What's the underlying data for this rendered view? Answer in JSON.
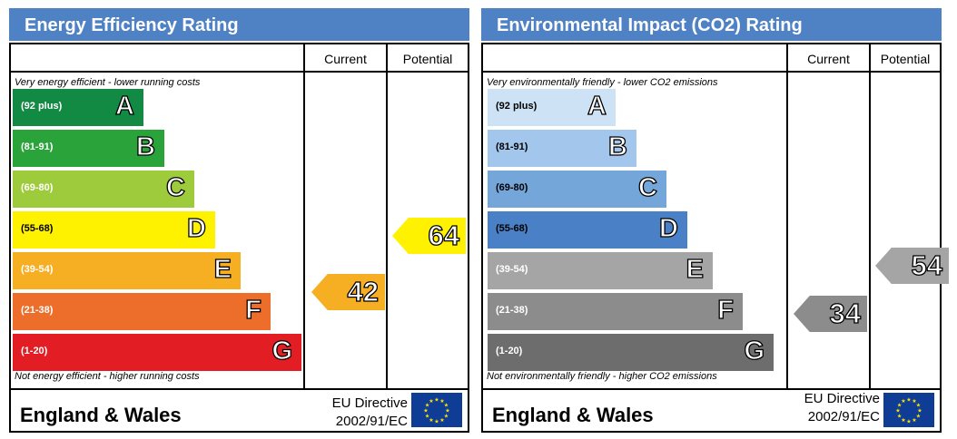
{
  "chart_data": [
    {
      "type": "table",
      "title": "Energy Efficiency Rating",
      "columns": [
        "Current",
        "Potential"
      ],
      "top_note": "Very energy efficient - lower running costs",
      "bottom_note": "Not energy efficient - higher running costs",
      "bands": [
        {
          "letter": "A",
          "range": "(92 plus)",
          "color": "#138a43"
        },
        {
          "letter": "B",
          "range": "(81-91)",
          "color": "#2aa33b"
        },
        {
          "letter": "C",
          "range": "(69-80)",
          "color": "#9dcb3c"
        },
        {
          "letter": "D",
          "range": "(55-68)",
          "color": "#fff200"
        },
        {
          "letter": "E",
          "range": "(39-54)",
          "color": "#f6ae23"
        },
        {
          "letter": "F",
          "range": "(21-38)",
          "color": "#ec6e2a"
        },
        {
          "letter": "G",
          "range": "(1-20)",
          "color": "#e31d24"
        }
      ],
      "current": {
        "value": "42",
        "band": "E",
        "color": "#f6ae23"
      },
      "potential": {
        "value": "64",
        "band": "D",
        "color": "#fff200"
      },
      "region": "England & Wales",
      "directive_1": "EU Directive",
      "directive_2": "2002/91/EC"
    },
    {
      "type": "table",
      "title": "Environmental Impact (CO2) Rating",
      "columns": [
        "Current",
        "Potential"
      ],
      "top_note": "Very environmentally friendly - lower CO2 emissions",
      "bottom_note": "Not environmentally friendly - higher CO2 emissions",
      "bands": [
        {
          "letter": "A",
          "range": "(92 plus)",
          "color": "#cde2f5"
        },
        {
          "letter": "B",
          "range": "(81-91)",
          "color": "#a3c6ed"
        },
        {
          "letter": "C",
          "range": "(69-80)",
          "color": "#74a6da"
        },
        {
          "letter": "D",
          "range": "(55-68)",
          "color": "#4a80c6"
        },
        {
          "letter": "E",
          "range": "(39-54)",
          "color": "#a5a5a5"
        },
        {
          "letter": "F",
          "range": "(21-38)",
          "color": "#8c8c8c"
        },
        {
          "letter": "G",
          "range": "(1-20)",
          "color": "#6d6d6d"
        }
      ],
      "current": {
        "value": "34",
        "band": "F",
        "color": "#8c8c8c"
      },
      "potential": {
        "value": "54",
        "band": "E",
        "color": "#a5a5a5"
      },
      "region": "England & Wales",
      "directive_1": "EU Directive",
      "directive_2": "2002/91/EC"
    }
  ]
}
